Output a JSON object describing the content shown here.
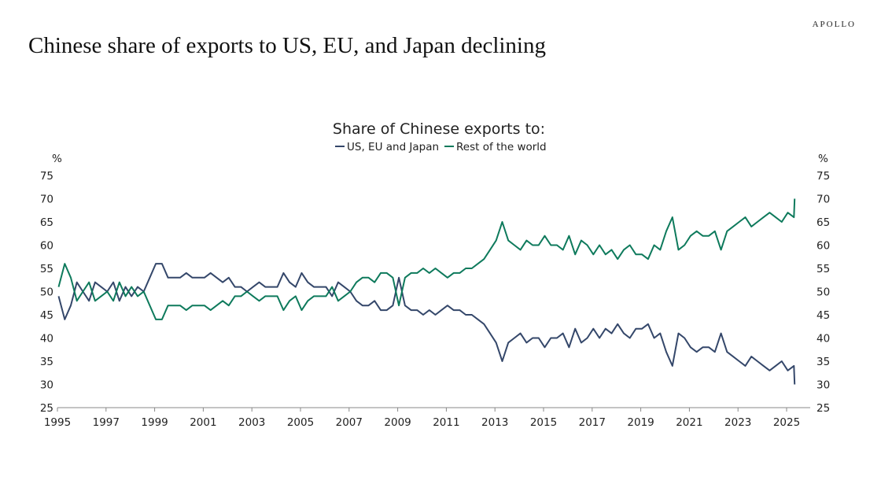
{
  "brand": "APOLLO",
  "title": "Chinese share of exports to US, EU, and Japan declining",
  "chart_data": {
    "type": "line",
    "title": "Share of Chinese exports to:",
    "ylabel_left": "%",
    "ylabel_right": "%",
    "ylim": [
      25,
      75
    ],
    "yticks": [
      25,
      30,
      35,
      40,
      45,
      50,
      55,
      60,
      65,
      70,
      75
    ],
    "xlim": [
      1995,
      2025.4
    ],
    "xticks": [
      "1995",
      "1997",
      "1999",
      "2001",
      "2003",
      "2005",
      "2007",
      "2009",
      "2011",
      "2013",
      "2015",
      "2017",
      "2019",
      "2021",
      "2023",
      "2025"
    ],
    "legend_placement": "top-center",
    "x_start": "1995-Q1",
    "x_frequency": "quarterly",
    "series": [
      {
        "name": "US, EU and Japan",
        "color": "#34476a",
        "values": [
          49,
          44,
          47,
          52,
          50,
          48,
          52,
          51,
          50,
          52,
          48,
          51,
          49,
          51,
          50,
          53,
          56,
          56,
          53,
          53,
          53,
          54,
          53,
          53,
          53,
          54,
          53,
          52,
          53,
          51,
          51,
          50,
          51,
          52,
          51,
          51,
          51,
          54,
          52,
          51,
          54,
          52,
          51,
          51,
          51,
          49,
          52,
          51,
          50,
          48,
          47,
          47,
          48,
          46,
          46,
          47,
          53,
          47,
          46,
          46,
          45,
          46,
          45,
          46,
          47,
          46,
          46,
          45,
          45,
          44,
          43,
          41,
          39,
          35,
          39,
          40,
          41,
          39,
          40,
          40,
          38,
          40,
          40,
          41,
          38,
          42,
          39,
          40,
          42,
          40,
          42,
          41,
          43,
          41,
          40,
          42,
          42,
          43,
          40,
          41,
          37,
          34,
          41,
          40,
          38,
          37,
          38,
          38,
          37,
          41,
          37,
          36,
          35,
          34,
          36,
          35,
          34,
          33,
          34,
          35,
          33,
          34,
          30
        ]
      },
      {
        "name": "Rest of the world",
        "color": "#0e7a5c",
        "values": [
          51,
          56,
          53,
          48,
          50,
          52,
          48,
          49,
          50,
          48,
          52,
          49,
          51,
          49,
          50,
          47,
          44,
          44,
          47,
          47,
          47,
          46,
          47,
          47,
          47,
          46,
          47,
          48,
          47,
          49,
          49,
          50,
          49,
          48,
          49,
          49,
          49,
          46,
          48,
          49,
          46,
          48,
          49,
          49,
          49,
          51,
          48,
          49,
          50,
          52,
          53,
          53,
          52,
          54,
          54,
          53,
          47,
          53,
          54,
          54,
          55,
          54,
          55,
          54,
          53,
          54,
          54,
          55,
          55,
          56,
          57,
          59,
          61,
          65,
          61,
          60,
          59,
          61,
          60,
          60,
          62,
          60,
          60,
          59,
          62,
          58,
          61,
          60,
          58,
          60,
          58,
          59,
          57,
          59,
          60,
          58,
          58,
          57,
          60,
          59,
          63,
          66,
          59,
          60,
          62,
          63,
          62,
          62,
          63,
          59,
          63,
          64,
          65,
          66,
          64,
          65,
          66,
          67,
          66,
          65,
          67,
          66,
          70
        ]
      }
    ]
  }
}
